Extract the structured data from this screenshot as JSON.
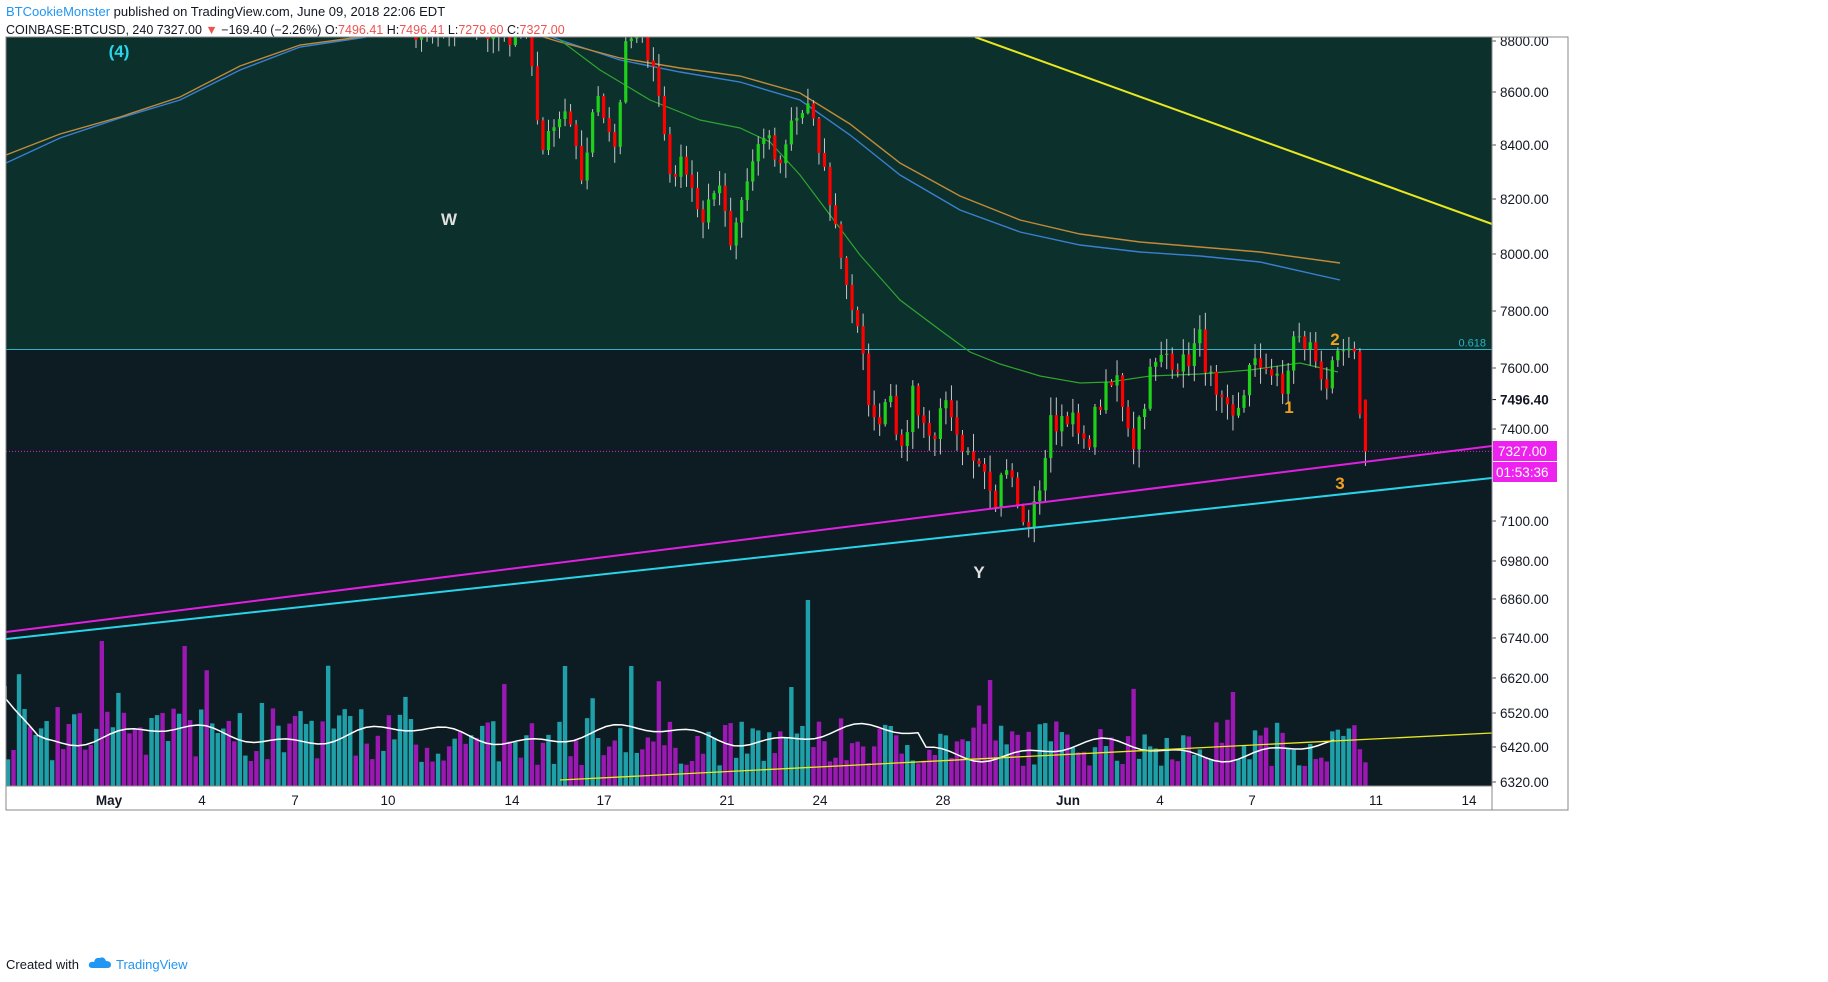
{
  "header": {
    "author": "BTCookieMonster",
    "published": " published on TradingView.com, June 09, 2018 22:06 EDT",
    "symbol": "COINBASE:BTCUSD, 240",
    "last": "7327.00",
    "change": "−169.40 (−2.26%)",
    "o_label": "O:",
    "o_value": "7496.41",
    "h_label": "H:",
    "h_value": "7496.41",
    "l_label": "L:",
    "l_value": "7279.60",
    "c_label": "C:",
    "c_value": "7327.00",
    "down_arrow": "▼"
  },
  "footer": {
    "created": "Created with",
    "brand": "TradingView",
    "logo_icon": "tradingview-cloud-icon"
  },
  "colors": {
    "background": "#0d1b22",
    "upper_zone": "#0c302c",
    "up_candle": "#1fd11b",
    "down_candle": "#ff0000",
    "vol_up": "#1fa0a8",
    "vol_down": "#9b18b2",
    "ma_green": "#2ea52e",
    "ma_orange": "#c08a3a",
    "ma_blue": "#3a7fcf",
    "magenta_line": "#e020e0",
    "cyan_line": "#2ad4e8",
    "yellow_line": "#e8e820",
    "fib_line": "#2ab4c8"
  },
  "chart_data": {
    "type": "candlestick",
    "title": "",
    "symbol": "COINBASE:BTCUSD",
    "interval": "240",
    "ylim": [
      6320,
      8800
    ],
    "y_ticks": [
      "8800.00",
      "8600.00",
      "8400.00",
      "8200.00",
      "8000.00",
      "7800.00",
      "7600.00",
      "7400.00",
      "7100.00",
      "6980.00",
      "6860.00",
      "6740.00",
      "6620.00",
      "6520.00",
      "6420.00",
      "6320.00"
    ],
    "x_ticks": [
      "May",
      "4",
      "7",
      "10",
      "14",
      "17",
      "21",
      "24",
      "28",
      "Jun",
      "4",
      "7",
      "11",
      "14"
    ],
    "price_labels": {
      "open_marker": "7496.40",
      "last": "7327.00",
      "countdown": "01:53:36"
    },
    "fib_level": {
      "label": "0.618",
      "value": 7665
    },
    "wave_labels": [
      "(4)",
      "W",
      "Y",
      "1",
      "2",
      "3"
    ],
    "waypoints": [
      [
        0,
        8850
      ],
      [
        20,
        8820
      ],
      [
        23,
        8380
      ],
      [
        27,
        8520
      ],
      [
        30,
        8280
      ],
      [
        33,
        8600
      ],
      [
        36,
        8400
      ],
      [
        38,
        8760
      ],
      [
        40,
        8850
      ],
      [
        43,
        8720
      ],
      [
        46,
        8300
      ],
      [
        49,
        8330
      ],
      [
        52,
        8100
      ],
      [
        55,
        8280
      ],
      [
        57,
        8050
      ],
      [
        60,
        8280
      ],
      [
        63,
        8450
      ],
      [
        66,
        8300
      ],
      [
        68,
        8480
      ],
      [
        71,
        8540
      ],
      [
        74,
        8300
      ],
      [
        77,
        8000
      ],
      [
        80,
        7720
      ],
      [
        83,
        7410
      ],
      [
        86,
        7540
      ],
      [
        88,
        7300
      ],
      [
        90,
        7530
      ],
      [
        93,
        7370
      ],
      [
        96,
        7460
      ],
      [
        99,
        7290
      ],
      [
        102,
        7330
      ],
      [
        105,
        7190
      ],
      [
        107,
        7290
      ],
      [
        110,
        7080
      ],
      [
        112,
        7130
      ],
      [
        115,
        7410
      ],
      [
        118,
        7460
      ],
      [
        121,
        7330
      ],
      [
        124,
        7490
      ],
      [
        127,
        7560
      ],
      [
        130,
        7360
      ],
      [
        133,
        7580
      ],
      [
        136,
        7650
      ],
      [
        139,
        7610
      ],
      [
        142,
        7700
      ],
      [
        145,
        7480
      ],
      [
        148,
        7420
      ],
      [
        151,
        7590
      ],
      [
        154,
        7620
      ],
      [
        157,
        7510
      ],
      [
        159,
        7700
      ],
      [
        162,
        7670
      ],
      [
        165,
        7550
      ],
      [
        168,
        7650
      ],
      [
        170,
        7620
      ],
      [
        172,
        7330
      ]
    ]
  }
}
